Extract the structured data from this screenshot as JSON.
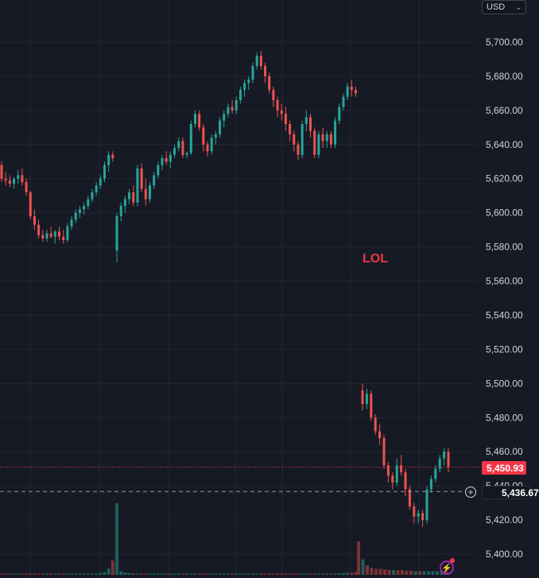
{
  "currency": "USD",
  "annotation_text": "LOL",
  "last_price_label": "5,450.93",
  "crosshair_price_label": "5,436.67",
  "colors": {
    "background": "#161a25",
    "up": "#26a69a",
    "down": "#ef5350",
    "grid": "#232632",
    "axis_text": "#d1d4dc",
    "last_price": "#f23645"
  },
  "chart_data": {
    "type": "candlestick",
    "yaxis": {
      "ticks": [
        "5,700.00",
        "5,680.00",
        "5,660.00",
        "5,640.00",
        "5,620.00",
        "5,600.00",
        "5,580.00",
        "5,560.00",
        "5,540.00",
        "5,520.00",
        "5,500.00",
        "5,480.00",
        "5,460.00",
        "5,440.00",
        "5,420.00",
        "5,400.00"
      ],
      "ylim": [
        5398,
        5712
      ]
    },
    "last_price": 5450.93,
    "crosshair_price": 5436.67,
    "segments": [
      {
        "ohlc": [
          [
            5628,
            5630,
            5618,
            5620
          ],
          [
            5620,
            5624,
            5616,
            5619
          ],
          [
            5619,
            5622,
            5615,
            5617
          ],
          [
            5617,
            5621,
            5614,
            5620
          ],
          [
            5620,
            5625,
            5617,
            5622
          ],
          [
            5622,
            5626,
            5616,
            5618
          ],
          [
            5618,
            5620,
            5610,
            5612
          ],
          [
            5612,
            5613,
            5596,
            5598
          ],
          [
            5598,
            5602,
            5590,
            5593
          ],
          [
            5593,
            5596,
            5585,
            5587
          ],
          [
            5587,
            5590,
            5583,
            5585
          ],
          [
            5585,
            5590,
            5583,
            5588
          ],
          [
            5588,
            5592,
            5585,
            5586
          ],
          [
            5586,
            5590,
            5582,
            5589
          ],
          [
            5589,
            5592,
            5584,
            5586
          ],
          [
            5586,
            5590,
            5582,
            5584
          ],
          [
            5584,
            5594,
            5583,
            5592
          ],
          [
            5592,
            5598,
            5590,
            5596
          ],
          [
            5596,
            5602,
            5594,
            5600
          ],
          [
            5600,
            5604,
            5597,
            5602
          ],
          [
            5602,
            5606,
            5599,
            5604
          ],
          [
            5604,
            5610,
            5602,
            5608
          ],
          [
            5608,
            5614,
            5606,
            5612
          ],
          [
            5612,
            5618,
            5610,
            5616
          ],
          [
            5616,
            5622,
            5614,
            5620
          ],
          [
            5620,
            5630,
            5618,
            5628
          ],
          [
            5628,
            5636,
            5624,
            5634
          ],
          [
            5634,
            5636,
            5630,
            5632
          ],
          [
            5578,
            5600,
            5571,
            5598
          ],
          [
            5598,
            5606,
            5595,
            5604
          ],
          [
            5604,
            5610,
            5600,
            5608
          ],
          [
            5608,
            5614,
            5605,
            5612
          ],
          [
            5612,
            5616,
            5604,
            5606
          ],
          [
            5606,
            5628,
            5604,
            5626
          ],
          [
            5626,
            5629,
            5612,
            5614
          ],
          [
            5614,
            5620,
            5604,
            5608
          ],
          [
            5608,
            5618,
            5606,
            5616
          ],
          [
            5616,
            5624,
            5614,
            5622
          ],
          [
            5622,
            5630,
            5620,
            5628
          ],
          [
            5628,
            5634,
            5625,
            5632
          ],
          [
            5632,
            5636,
            5628,
            5630
          ],
          [
            5630,
            5636,
            5626,
            5634
          ],
          [
            5634,
            5640,
            5632,
            5638
          ],
          [
            5638,
            5644,
            5636,
            5642
          ],
          [
            5642,
            5644,
            5632,
            5634
          ],
          [
            5634,
            5636,
            5632,
            5635
          ],
          [
            5635,
            5654,
            5634,
            5652
          ],
          [
            5652,
            5660,
            5650,
            5658
          ],
          [
            5658,
            5660,
            5648,
            5650
          ],
          [
            5650,
            5652,
            5636,
            5640
          ],
          [
            5640,
            5642,
            5633,
            5636
          ],
          [
            5636,
            5646,
            5634,
            5644
          ],
          [
            5644,
            5648,
            5640,
            5646
          ],
          [
            5646,
            5656,
            5644,
            5654
          ],
          [
            5654,
            5660,
            5650,
            5658
          ],
          [
            5658,
            5664,
            5656,
            5662
          ],
          [
            5662,
            5666,
            5658,
            5660
          ],
          [
            5660,
            5668,
            5658,
            5666
          ],
          [
            5666,
            5674,
            5664,
            5672
          ],
          [
            5672,
            5678,
            5668,
            5676
          ],
          [
            5676,
            5680,
            5672,
            5678
          ],
          [
            5678,
            5688,
            5676,
            5686
          ],
          [
            5686,
            5694,
            5684,
            5692
          ],
          [
            5692,
            5695,
            5684,
            5686
          ],
          [
            5686,
            5688,
            5676,
            5680
          ],
          [
            5680,
            5682,
            5670,
            5672
          ],
          [
            5672,
            5674,
            5662,
            5666
          ],
          [
            5666,
            5668,
            5656,
            5660
          ],
          [
            5660,
            5664,
            5654,
            5658
          ],
          [
            5658,
            5662,
            5648,
            5652
          ],
          [
            5652,
            5654,
            5642,
            5646
          ],
          [
            5646,
            5648,
            5636,
            5640
          ],
          [
            5640,
            5642,
            5631,
            5634
          ],
          [
            5634,
            5654,
            5632,
            5652
          ],
          [
            5652,
            5660,
            5648,
            5656
          ],
          [
            5656,
            5658,
            5644,
            5648
          ],
          [
            5648,
            5650,
            5632,
            5634
          ],
          [
            5634,
            5648,
            5632,
            5646
          ],
          [
            5646,
            5650,
            5638,
            5642
          ],
          [
            5642,
            5648,
            5638,
            5646
          ],
          [
            5646,
            5648,
            5638,
            5640
          ],
          [
            5640,
            5656,
            5638,
            5654
          ],
          [
            5654,
            5664,
            5652,
            5662
          ],
          [
            5662,
            5670,
            5660,
            5668
          ],
          [
            5668,
            5676,
            5666,
            5674
          ],
          [
            5674,
            5678,
            5668,
            5672
          ],
          [
            5672,
            5674,
            5668,
            5670
          ]
        ]
      },
      {
        "ohlc": [
          [
            5496,
            5500,
            5484,
            5488
          ],
          [
            5488,
            5497,
            5485,
            5494
          ],
          [
            5494,
            5496,
            5478,
            5480
          ],
          [
            5480,
            5482,
            5470,
            5472
          ],
          [
            5472,
            5476,
            5464,
            5468
          ],
          [
            5468,
            5470,
            5450,
            5452
          ],
          [
            5452,
            5454,
            5442,
            5446
          ],
          [
            5446,
            5448,
            5438,
            5442
          ],
          [
            5442,
            5456,
            5440,
            5452
          ],
          [
            5452,
            5458,
            5446,
            5448
          ],
          [
            5448,
            5450,
            5434,
            5438
          ],
          [
            5438,
            5440,
            5426,
            5428
          ],
          [
            5428,
            5430,
            5418,
            5422
          ],
          [
            5422,
            5426,
            5418,
            5424
          ],
          [
            5424,
            5426,
            5416,
            5420
          ],
          [
            5420,
            5440,
            5418,
            5438
          ],
          [
            5438,
            5446,
            5436,
            5444
          ],
          [
            5444,
            5452,
            5442,
            5450
          ],
          [
            5450,
            5458,
            5448,
            5456
          ],
          [
            5456,
            5462,
            5452,
            5460
          ],
          [
            5460,
            5462,
            5448,
            5450.93
          ]
        ]
      }
    ],
    "volume": {
      "segment1": [
        1,
        1,
        1,
        1,
        1,
        1,
        1,
        1,
        1,
        1,
        1,
        1,
        1,
        1,
        1,
        1,
        1,
        1,
        1,
        1,
        1,
        1,
        1,
        1,
        1.5,
        2.5,
        5.2,
        12,
        60,
        3,
        2,
        1.5,
        1.2,
        1,
        1,
        1,
        1,
        1,
        1,
        1,
        1,
        1,
        1,
        1,
        1,
        1,
        1,
        1,
        1,
        1,
        1,
        1,
        1,
        1,
        1,
        1,
        1,
        1,
        1,
        1,
        1,
        1,
        1,
        1,
        1,
        1,
        1,
        1,
        1,
        1,
        1,
        1,
        1,
        1,
        1,
        1,
        1,
        1,
        1,
        1,
        1,
        1.2,
        1.3,
        1.5,
        1.8,
        2,
        2.5
      ],
      "segment2": [
        28,
        13,
        8,
        6,
        5,
        5,
        4.5,
        4,
        4,
        4,
        4,
        3.5,
        3.5,
        3,
        3,
        3,
        3,
        3,
        3,
        3,
        3
      ]
    }
  }
}
